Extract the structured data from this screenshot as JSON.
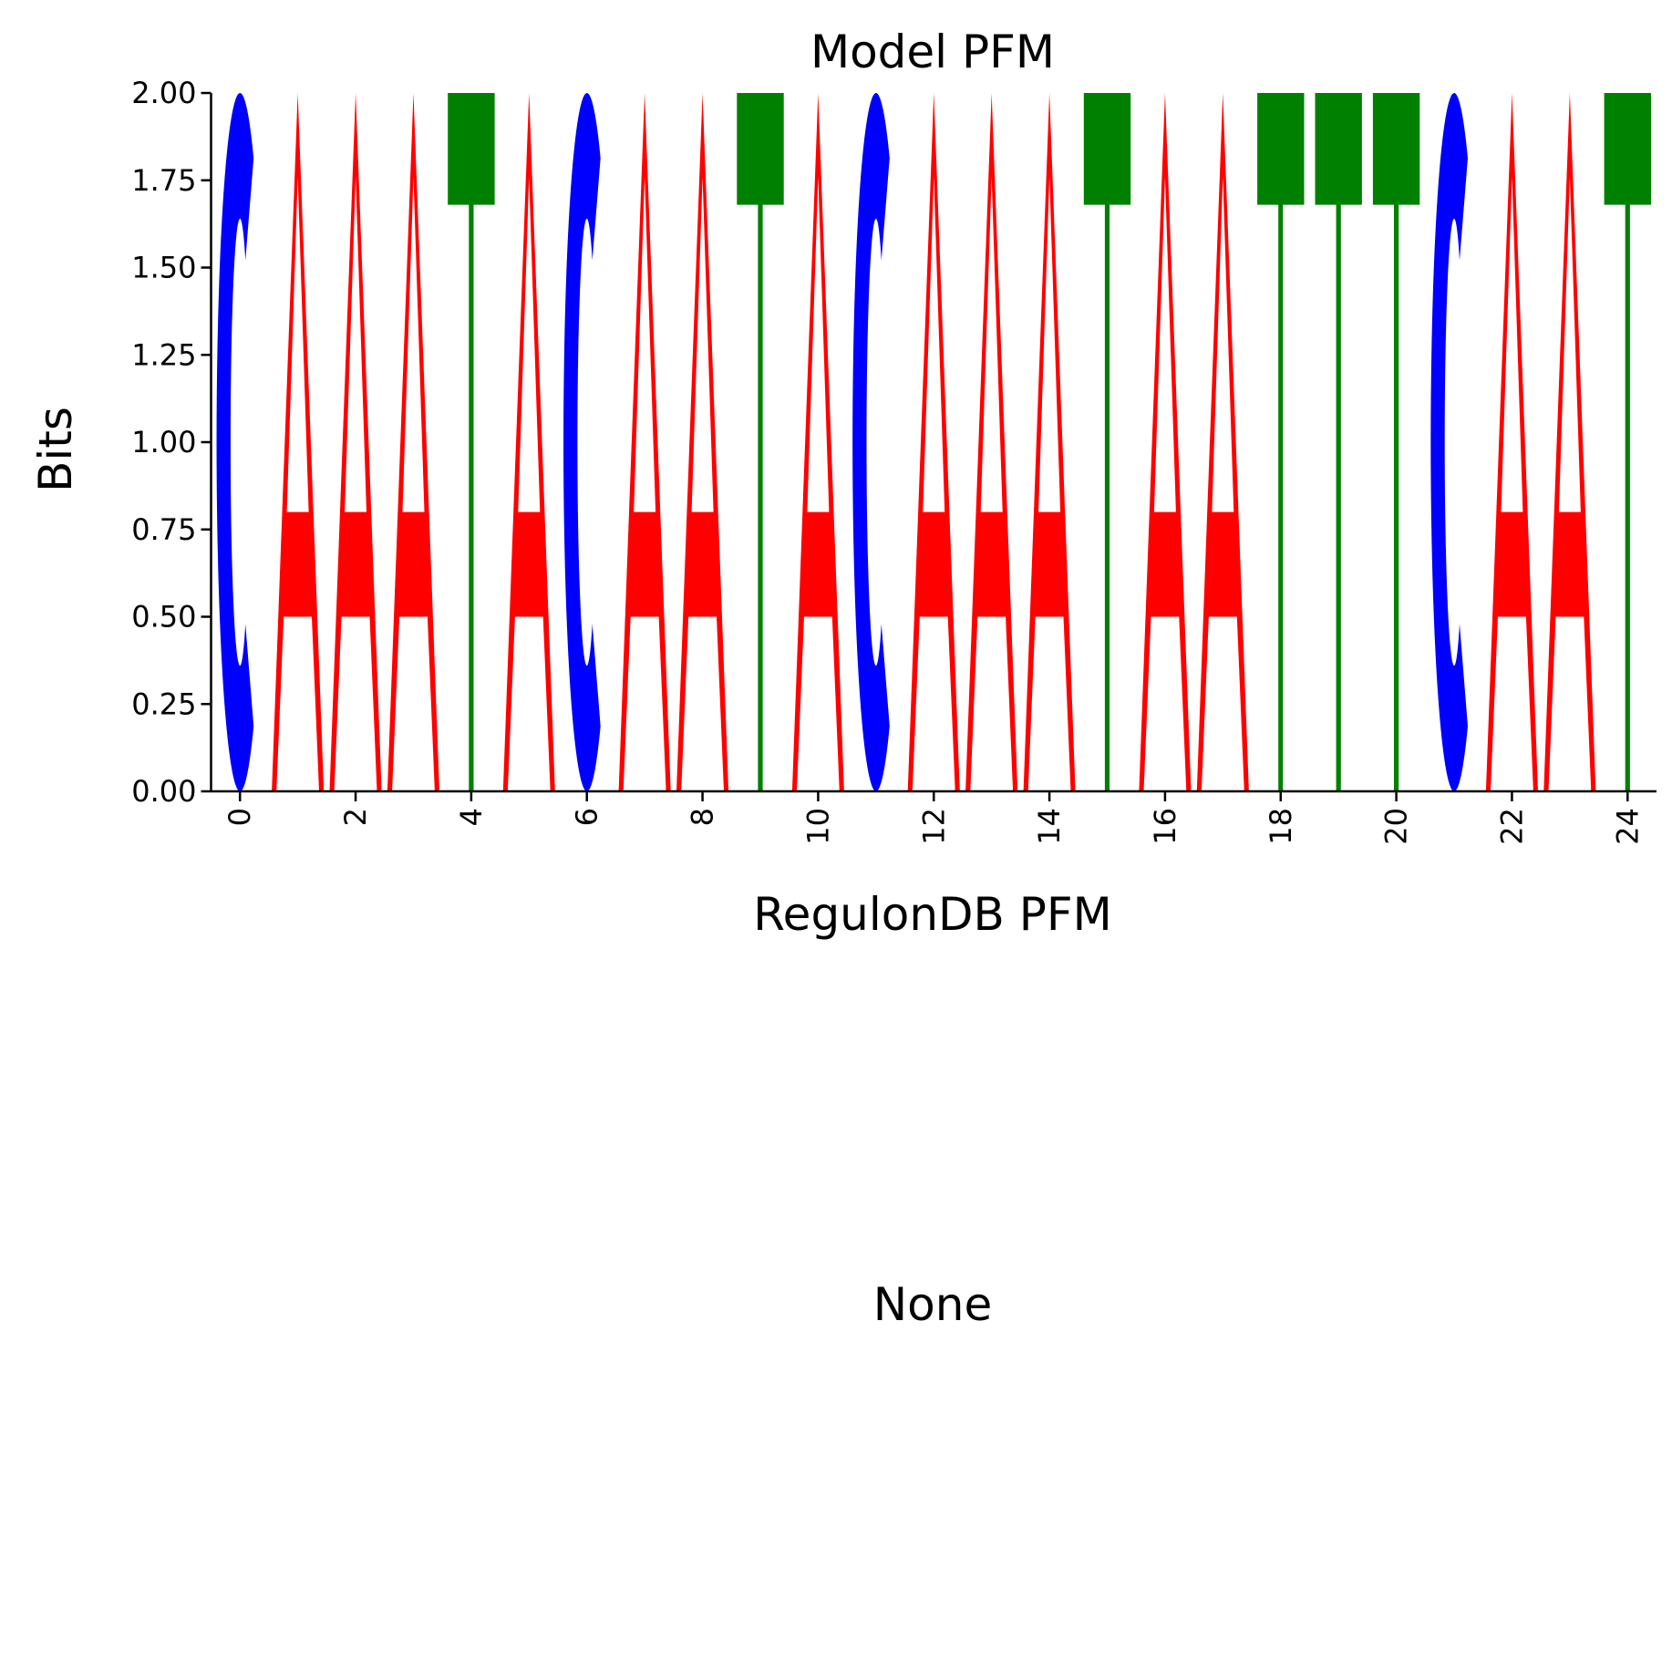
{
  "chart_data": {
    "type": "sequence-logo",
    "title": "Model PFM",
    "xlabel": "RegulonDB PFM",
    "ylabel": "Bits",
    "ylim": [
      0,
      2
    ],
    "xlim": [
      -0.5,
      24.5
    ],
    "yticks": [
      "0.00",
      "0.25",
      "0.50",
      "0.75",
      "1.00",
      "1.25",
      "1.50",
      "1.75",
      "2.00"
    ],
    "xticks": [
      "0",
      "2",
      "4",
      "6",
      "8",
      "10",
      "12",
      "14",
      "16",
      "18",
      "20",
      "22",
      "24"
    ],
    "positions": [
      0,
      1,
      2,
      3,
      4,
      5,
      6,
      7,
      8,
      9,
      10,
      11,
      12,
      13,
      14,
      15,
      16,
      17,
      18,
      19,
      20,
      21,
      22,
      23,
      24
    ],
    "letters": [
      "C",
      "A",
      "A",
      "A",
      "T",
      "A",
      "C",
      "A",
      "A",
      "T",
      "A",
      "C",
      "A",
      "A",
      "A",
      "T",
      "A",
      "A",
      "T",
      "T",
      "T",
      "C",
      "A",
      "A",
      "T"
    ],
    "bits": [
      2,
      2,
      2,
      2,
      2,
      2,
      2,
      2,
      2,
      2,
      2,
      2,
      2,
      2,
      2,
      2,
      2,
      2,
      2,
      2,
      2,
      2,
      2,
      2,
      2
    ],
    "colors": {
      "A": "#ff0000",
      "C": "#0000ff",
      "T": "#008000"
    },
    "grid": false
  },
  "lower_panel": {
    "text": "None"
  }
}
